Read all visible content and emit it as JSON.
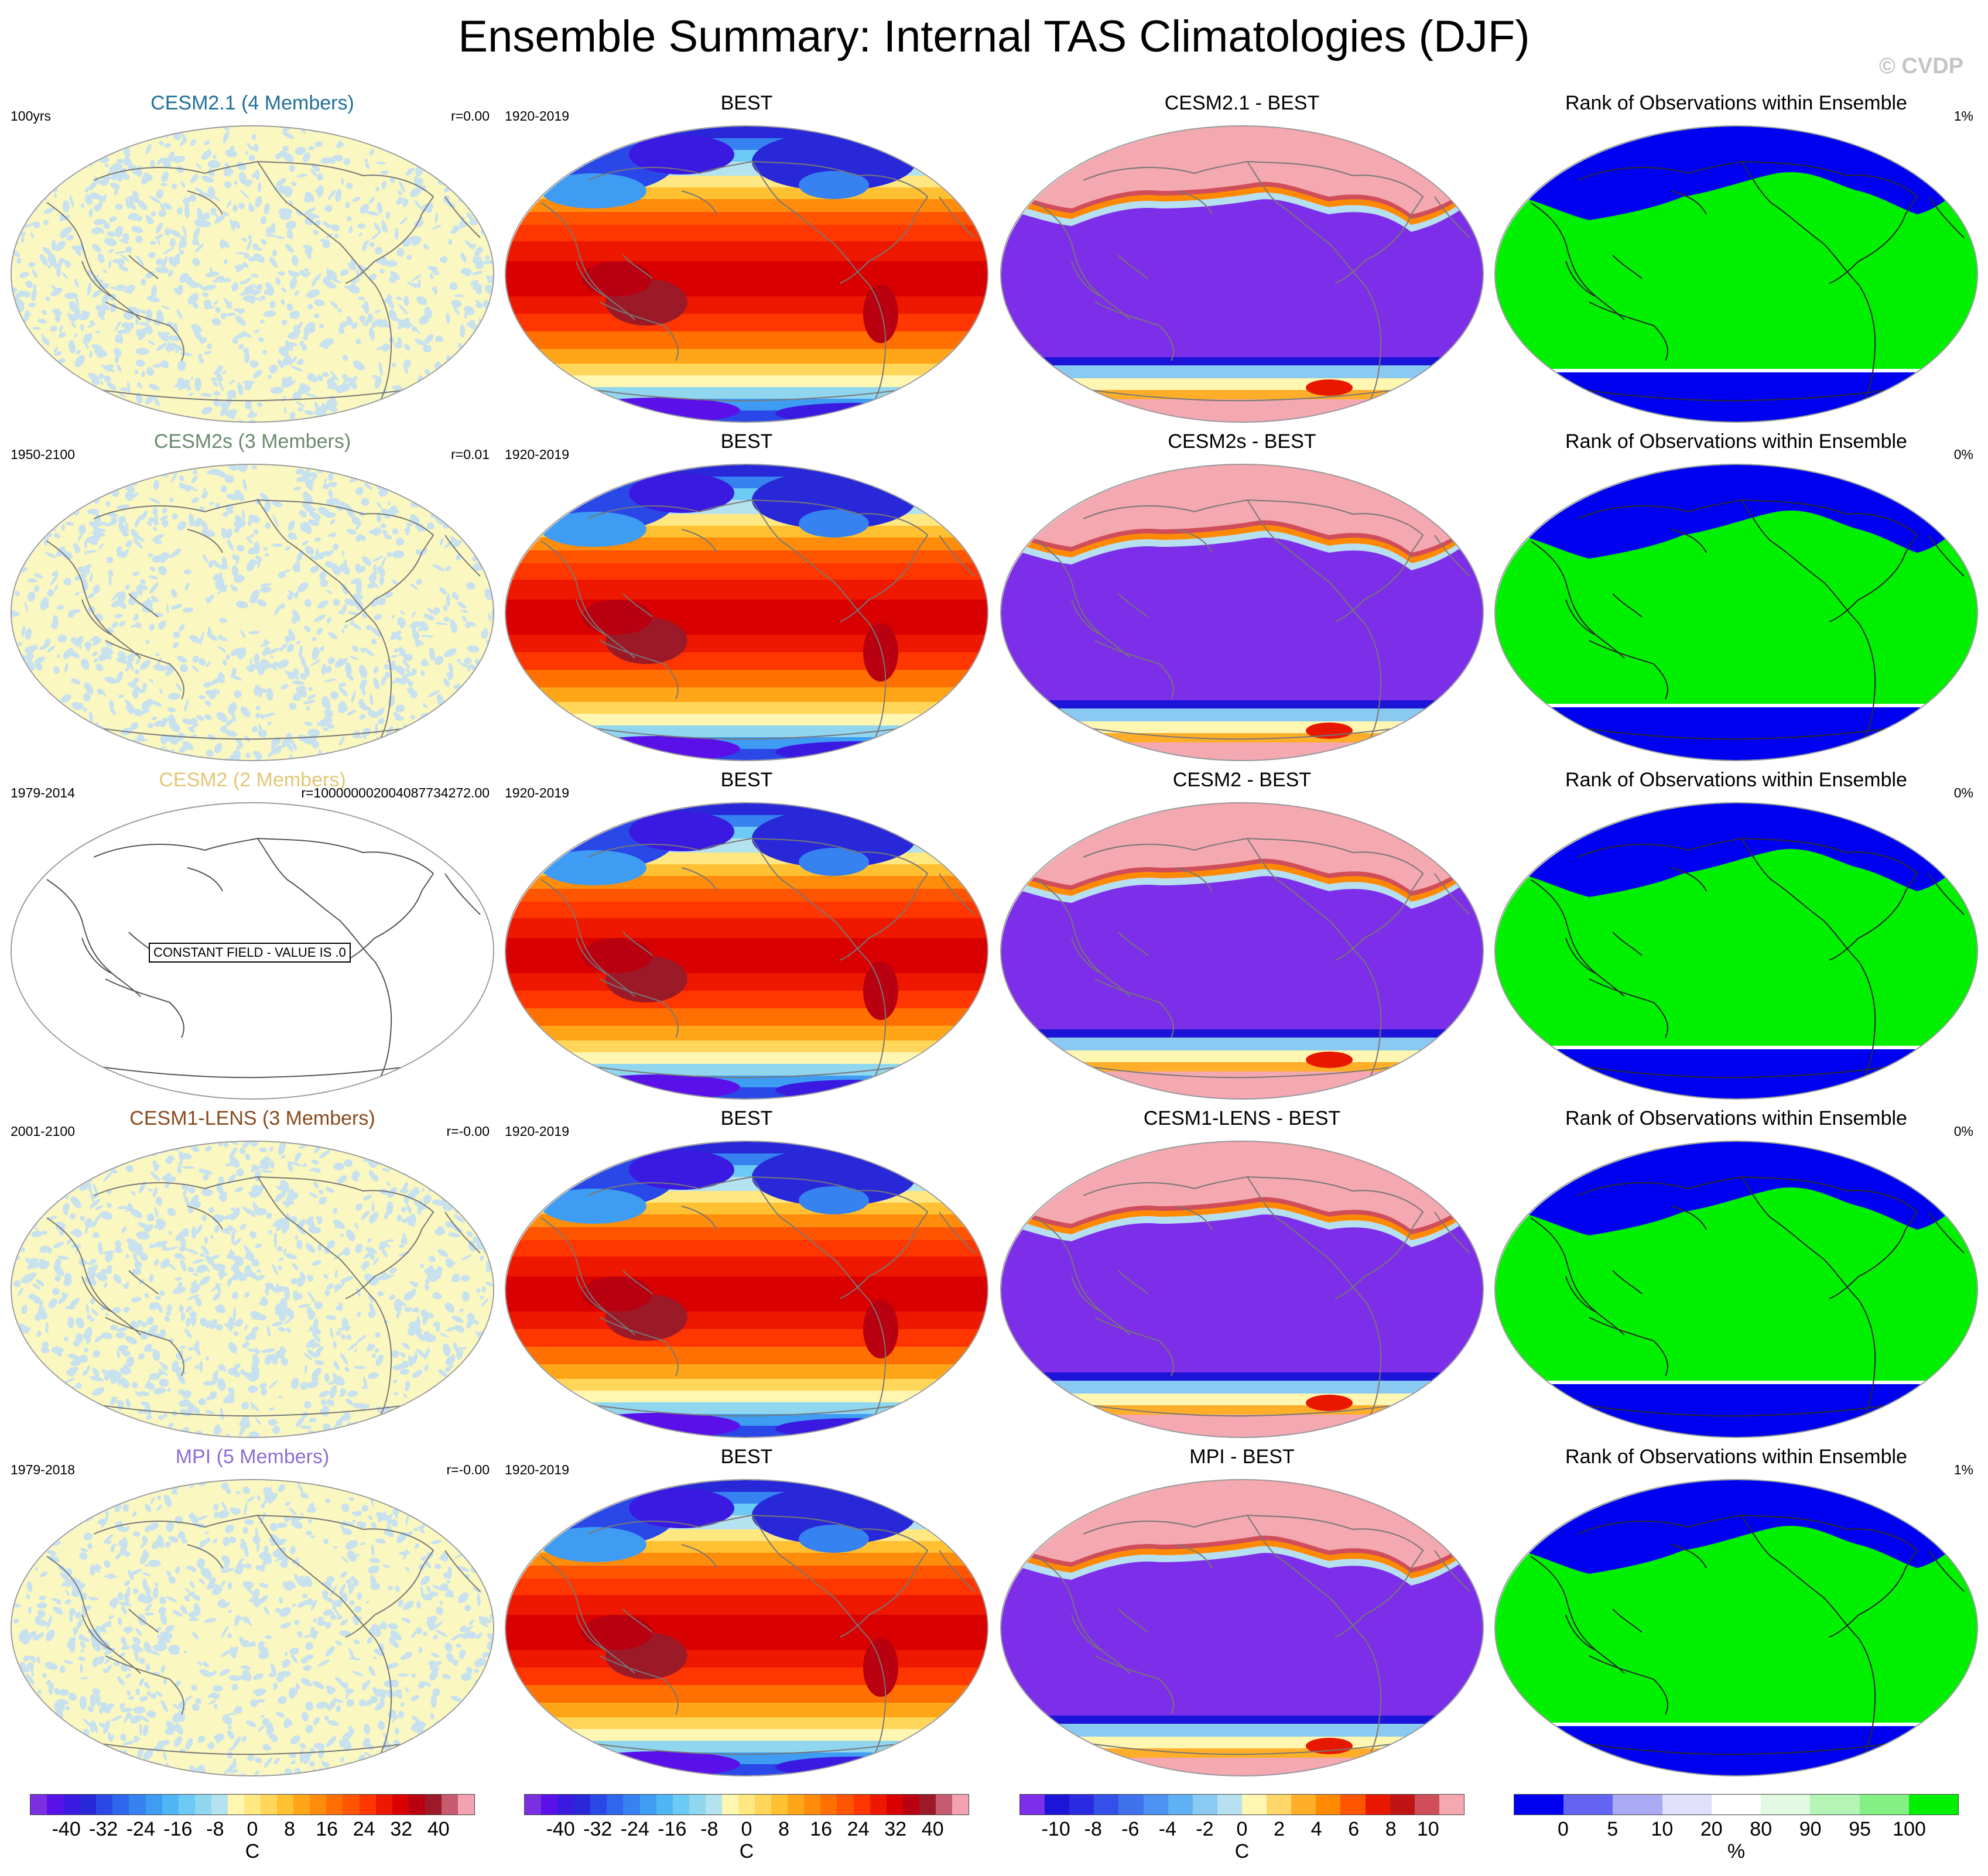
{
  "title": "Ensemble Summary: Internal TAS Climatologies (DJF)",
  "watermark": "© CVDP",
  "constant_field_text": "CONSTANT FIELD - VALUE IS .0",
  "chart_data": {
    "type": "heatmap",
    "projection": "Robinson-like global map, Pacific-centered",
    "columns": [
      "Ensemble internal TAS climatology",
      "Observations (BEST)",
      "Ensemble minus BEST",
      "Rank of Observations within Ensemble"
    ],
    "rows": [
      {
        "ensemble": {
          "title": "CESM2.1 (4 Members)",
          "color": "#1f6f9a",
          "period": "100yrs",
          "r": "r=0.00",
          "pattern": "noise"
        },
        "obs": {
          "title": "BEST",
          "period": "1920-2019"
        },
        "diff": {
          "title": "CESM2.1 - BEST"
        },
        "rank": {
          "title": "Rank of Observations within Ensemble",
          "pct": "1%"
        }
      },
      {
        "ensemble": {
          "title": "CESM2s (3 Members)",
          "color": "#6b8a6e",
          "period": "1950-2100",
          "r": "r=0.01",
          "pattern": "noise"
        },
        "obs": {
          "title": "BEST",
          "period": "1920-2019"
        },
        "diff": {
          "title": "CESM2s - BEST"
        },
        "rank": {
          "title": "Rank of Observations within Ensemble",
          "pct": "0%"
        }
      },
      {
        "ensemble": {
          "title": "CESM2 (2 Members)",
          "color": "#e3c776",
          "period": "1979-2014",
          "r": "r=100000002004087734272.00",
          "pattern": "constant"
        },
        "obs": {
          "title": "BEST",
          "period": "1920-2019"
        },
        "diff": {
          "title": "CESM2 - BEST"
        },
        "rank": {
          "title": "Rank of Observations within Ensemble",
          "pct": "0%"
        }
      },
      {
        "ensemble": {
          "title": "CESM1-LENS (3 Members)",
          "color": "#8a4a1e",
          "period": "2001-2100",
          "r": "r=-0.00",
          "pattern": "noise"
        },
        "obs": {
          "title": "BEST",
          "period": "1920-2019"
        },
        "diff": {
          "title": "CESM1-LENS - BEST"
        },
        "rank": {
          "title": "Rank of Observations within Ensemble",
          "pct": "0%"
        }
      },
      {
        "ensemble": {
          "title": "MPI (5 Members)",
          "color": "#8b6fd1",
          "period": "1979-2018",
          "r": "r=-0.00",
          "pattern": "noise"
        },
        "obs": {
          "title": "BEST",
          "period": "1920-2019"
        },
        "diff": {
          "title": "MPI - BEST"
        },
        "rank": {
          "title": "Rank of Observations within Ensemble",
          "pct": "1%"
        }
      }
    ],
    "colorbars": [
      {
        "unit": "C",
        "range": [
          -40,
          40
        ],
        "ticks": [
          "-40",
          "-32",
          "-24",
          "-16",
          "-8",
          "0",
          "8",
          "16",
          "24",
          "32",
          "40"
        ],
        "colors": [
          "#7b2fe0",
          "#5a10e8",
          "#3a1ae0",
          "#2828d8",
          "#2a48e8",
          "#2e66ee",
          "#3682f0",
          "#3e9cf2",
          "#4eb6f4",
          "#6ccaf4",
          "#90d6ef",
          "#b4e2ee",
          "#fff6b2",
          "#ffe882",
          "#ffd659",
          "#ffc032",
          "#ffa618",
          "#ff8c0a",
          "#ff7000",
          "#ff5400",
          "#ff3600",
          "#ee1800",
          "#d80000",
          "#b80010",
          "#9c1a28",
          "#c65a6e",
          "#f2a2b0"
        ]
      },
      {
        "unit": "C",
        "range": [
          -40,
          40
        ],
        "ticks": [
          "-40",
          "-32",
          "-24",
          "-16",
          "-8",
          "0",
          "8",
          "16",
          "24",
          "32",
          "40"
        ],
        "colors": [
          "#7b2fe0",
          "#5a10e8",
          "#3a1ae0",
          "#2828d8",
          "#2a48e8",
          "#2e66ee",
          "#3682f0",
          "#3e9cf2",
          "#4eb6f4",
          "#6ccaf4",
          "#90d6ef",
          "#b4e2ee",
          "#fff6b2",
          "#ffe882",
          "#ffd659",
          "#ffc032",
          "#ffa618",
          "#ff8c0a",
          "#ff7000",
          "#ff5400",
          "#ff3600",
          "#ee1800",
          "#d80000",
          "#b80010",
          "#9c1a28",
          "#c65a6e",
          "#f2a2b0"
        ]
      },
      {
        "unit": "C",
        "range": [
          -10,
          10
        ],
        "ticks": [
          "-10",
          "-8",
          "-6",
          "-4",
          "-2",
          "0",
          "2",
          "4",
          "6",
          "8",
          "10"
        ],
        "colors": [
          "#7d2ee8",
          "#1c14d8",
          "#2a2ae0",
          "#3450e8",
          "#4072ee",
          "#4c92f2",
          "#60b0f4",
          "#8acaf2",
          "#b6e0f0",
          "#fff6b2",
          "#ffd66a",
          "#ffae2a",
          "#ff8a00",
          "#ff5400",
          "#e81800",
          "#c01414",
          "#d04e5a",
          "#f4a8b0"
        ]
      },
      {
        "unit": "%",
        "range": [
          0,
          100
        ],
        "ticks": [
          "0",
          "5",
          "10",
          "20",
          "80",
          "90",
          "95",
          "100"
        ],
        "tick_values": [
          0,
          5,
          10,
          20,
          80,
          90,
          95,
          100
        ],
        "colors": [
          "#0000f0",
          "#6464f2",
          "#aaaaf4",
          "#e0e0fa",
          "#ffffff",
          "#e2fae2",
          "#b4f4b4",
          "#84f084",
          "#00f000"
        ]
      }
    ]
  }
}
